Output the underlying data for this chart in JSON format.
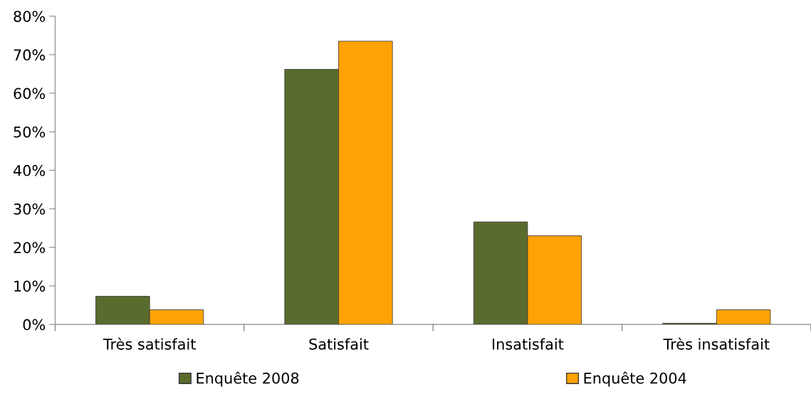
{
  "chart_data": {
    "type": "bar",
    "categories": [
      "Très satisfait",
      "Satisfait",
      "Insatisfait",
      "Très insatisfait"
    ],
    "series": [
      {
        "name": "Enquête 2008",
        "color": "#5a6b2e",
        "values": [
          7.3,
          66.2,
          26.6,
          0.3
        ]
      },
      {
        "name": "Enquête 2004",
        "color": "#ffa305",
        "values": [
          3.8,
          73.5,
          23.0,
          3.8
        ]
      }
    ],
    "ylim": [
      0,
      80
    ],
    "yticks": [
      {
        "value": 0,
        "label": "0%"
      },
      {
        "value": 10,
        "label": "10%"
      },
      {
        "value": 20,
        "label": "20%"
      },
      {
        "value": 30,
        "label": "30%"
      },
      {
        "value": 40,
        "label": "40%"
      },
      {
        "value": 50,
        "label": "50%"
      },
      {
        "value": 60,
        "label": "60%"
      },
      {
        "value": 70,
        "label": "70%"
      },
      {
        "value": 80,
        "label": "80%"
      }
    ],
    "grid": false,
    "legend": "bottom"
  }
}
